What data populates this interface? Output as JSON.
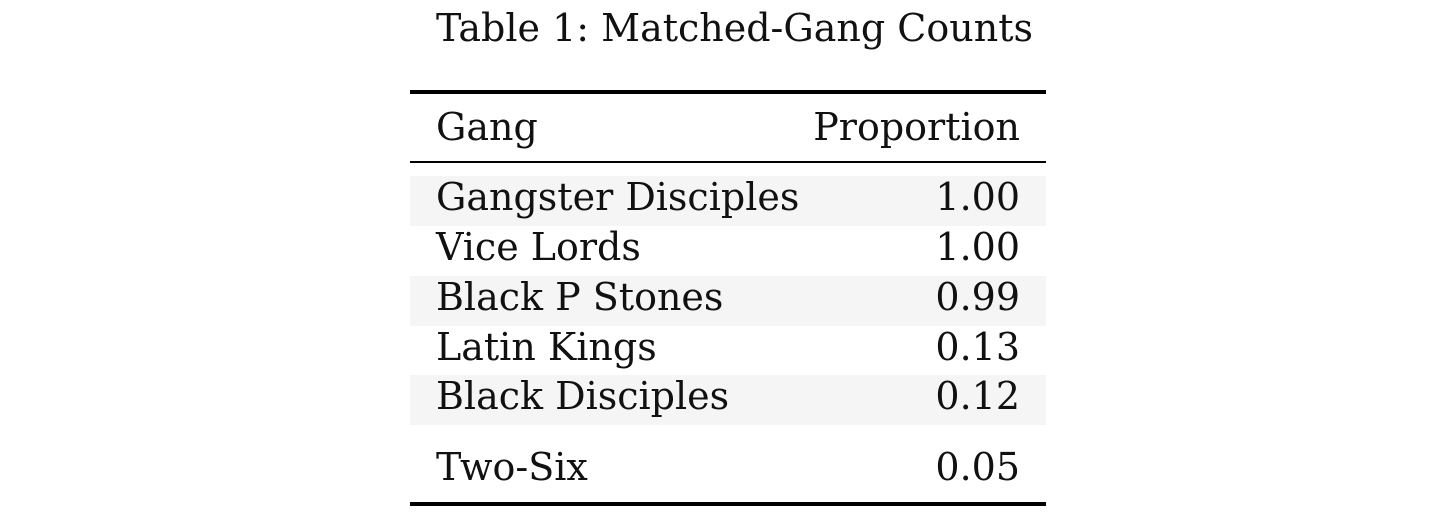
{
  "caption": "Table 1: Matched-Gang Counts",
  "table": {
    "headers": {
      "gang": "Gang",
      "proportion": "Proportion"
    },
    "rows": [
      {
        "gang": "Gangster Disciples",
        "proportion": "1.00"
      },
      {
        "gang": "Vice Lords",
        "proportion": "1.00"
      },
      {
        "gang": "Black P Stones",
        "proportion": "0.99"
      },
      {
        "gang": "Latin Kings",
        "proportion": "0.13"
      },
      {
        "gang": "Black Disciples",
        "proportion": "0.12"
      },
      {
        "gang": "Two-Six",
        "proportion": "0.05"
      }
    ],
    "colors": {
      "stripe": "#f5f5f5",
      "rule": "#000000"
    }
  }
}
